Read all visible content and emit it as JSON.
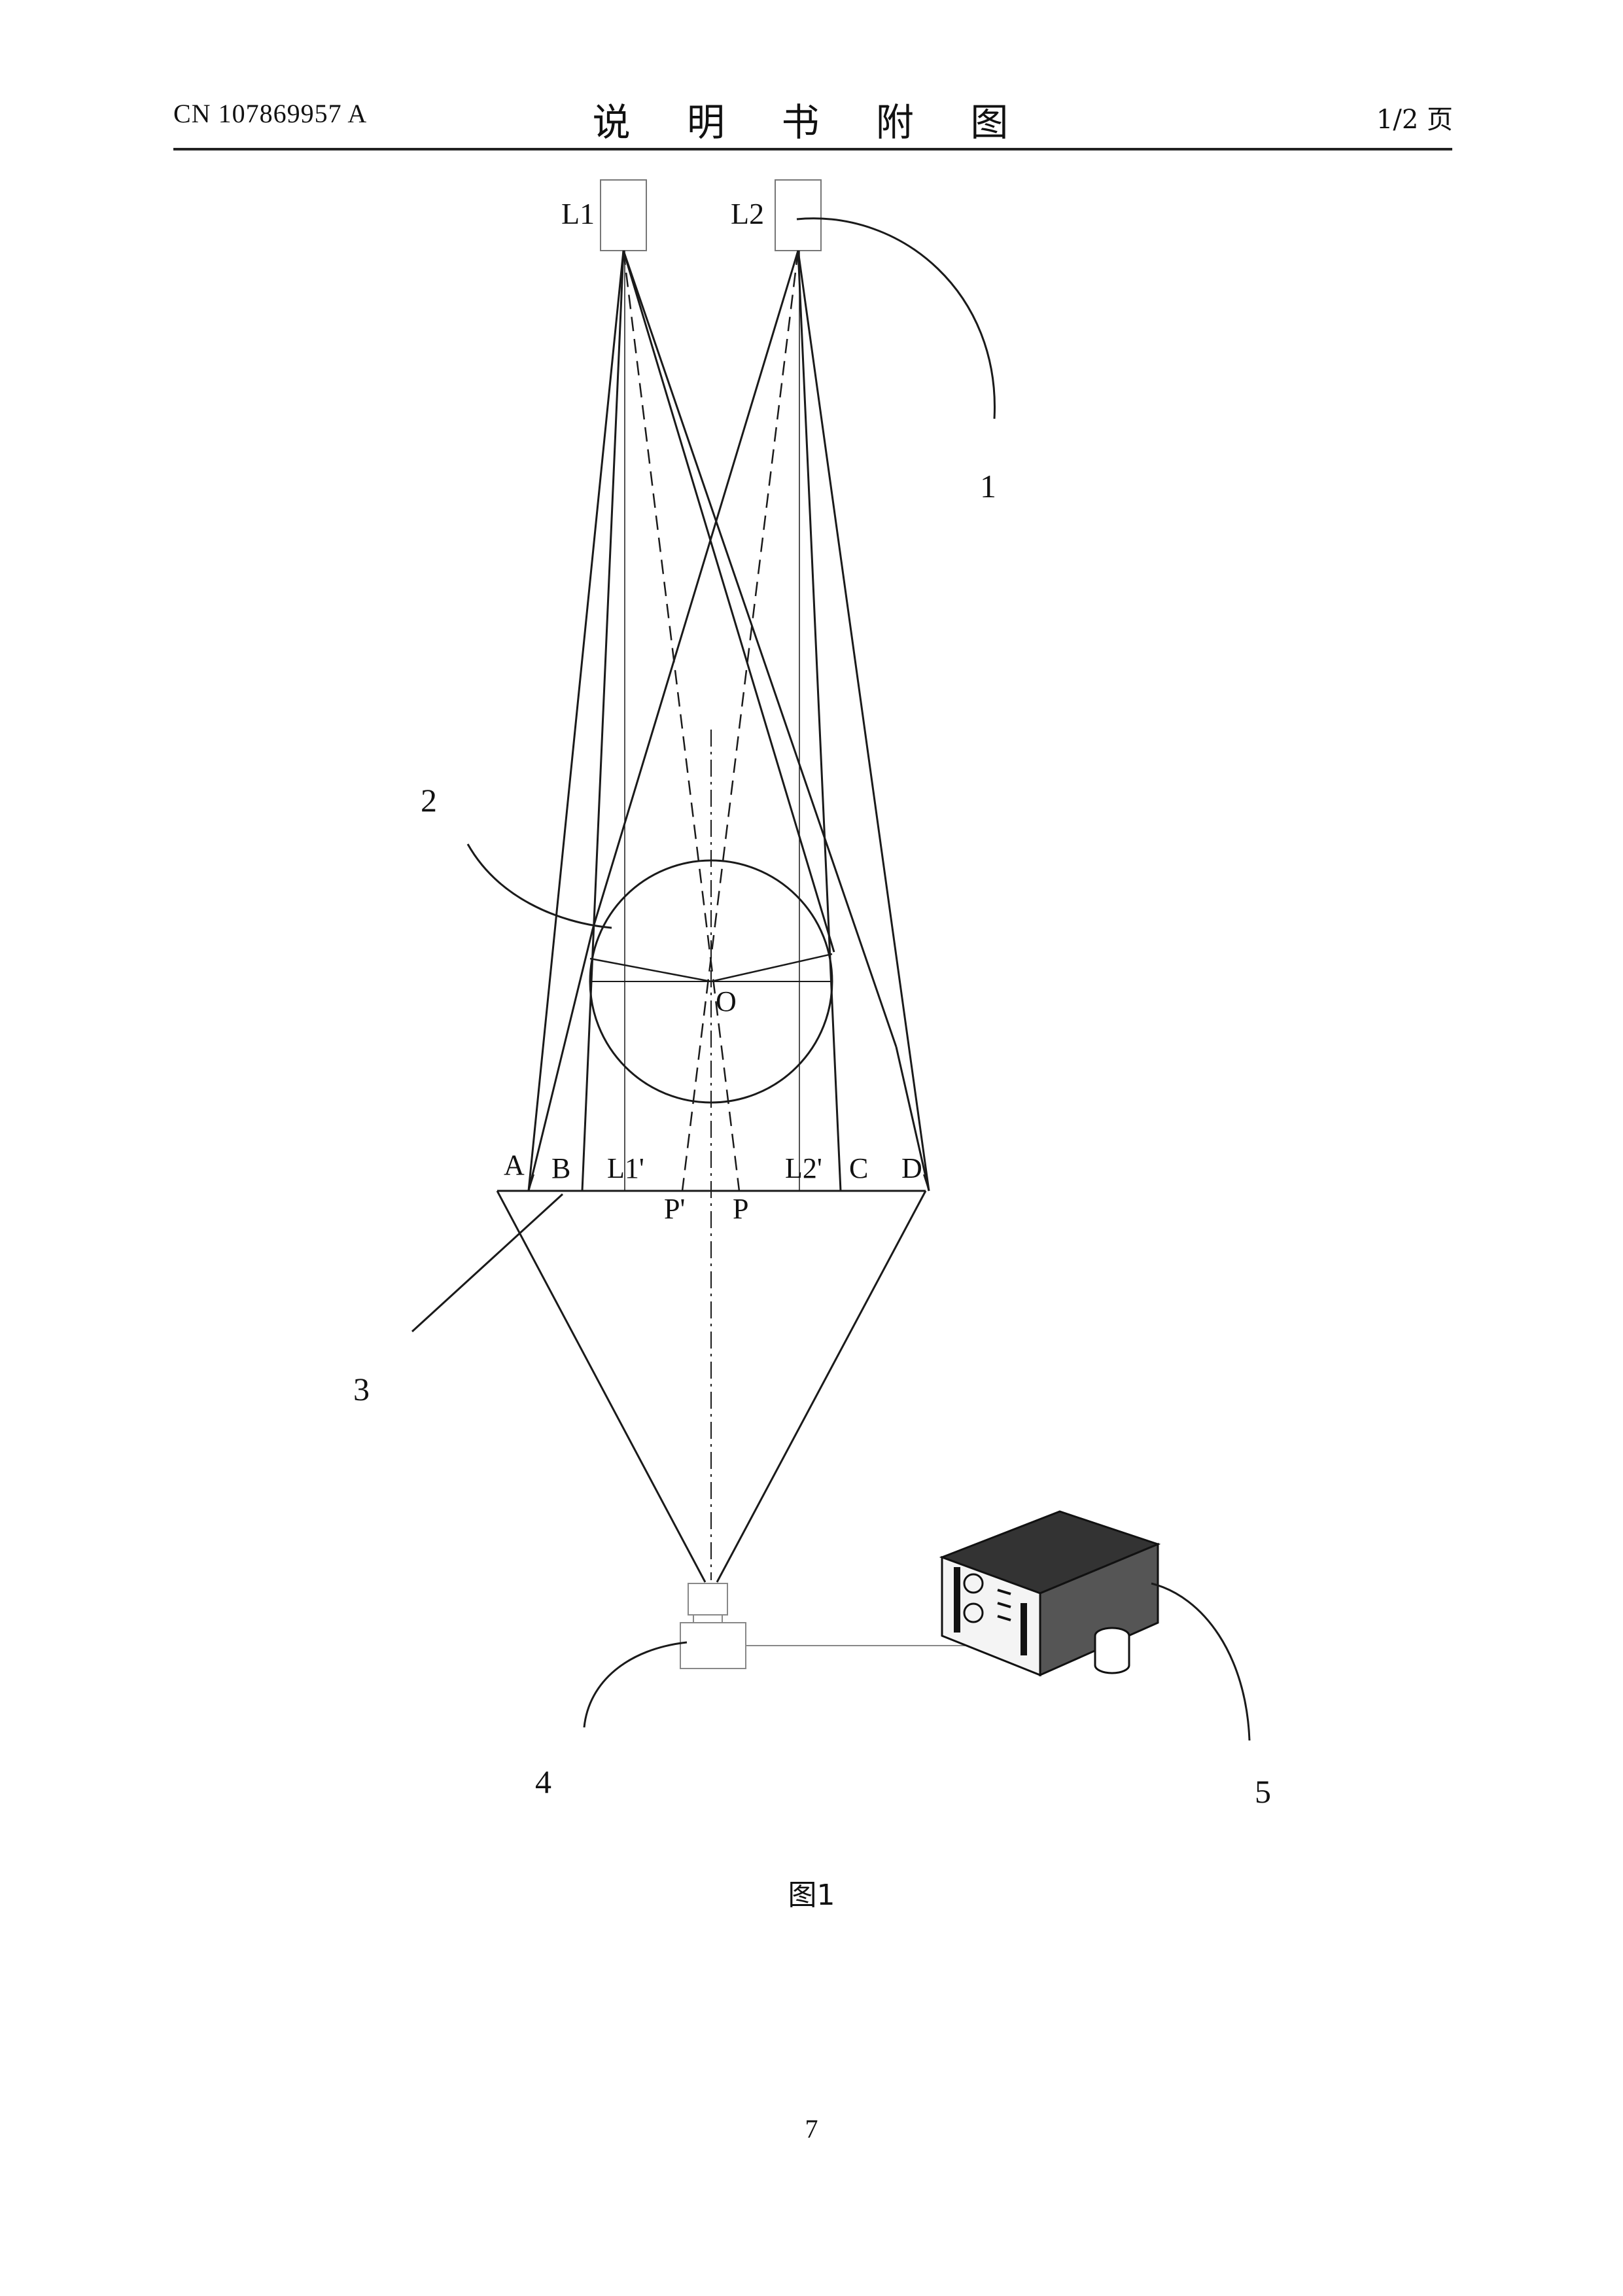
{
  "header": {
    "patent_number": "CN 107869957 A",
    "title": "说 明 书 附 图",
    "page_of": "1/2 页"
  },
  "figure": {
    "labels": {
      "L1": "L1",
      "L2": "L2",
      "O": "O",
      "A": "A",
      "B": "B",
      "L1p": "L1'",
      "L2p": "L2'",
      "C": "C",
      "D": "D",
      "Pp": "P'",
      "P": "P"
    },
    "callouts": {
      "c1": "1",
      "c2": "2",
      "c3": "3",
      "c4": "4",
      "c5": "5"
    },
    "caption": "图1"
  },
  "footer": {
    "page_number": "7"
  }
}
